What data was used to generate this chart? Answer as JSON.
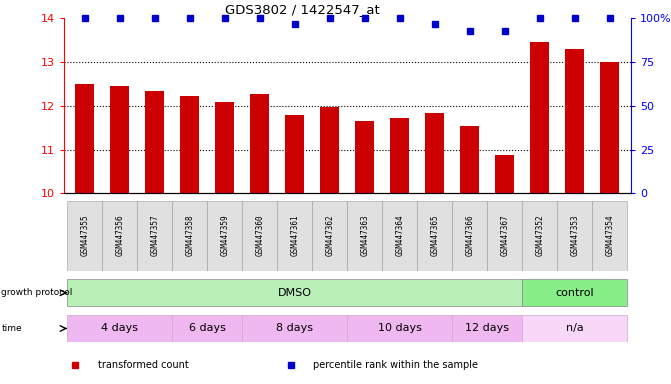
{
  "title": "GDS3802 / 1422547_at",
  "samples": [
    "GSM447355",
    "GSM447356",
    "GSM447357",
    "GSM447358",
    "GSM447359",
    "GSM447360",
    "GSM447361",
    "GSM447362",
    "GSM447363",
    "GSM447364",
    "GSM447365",
    "GSM447366",
    "GSM447367",
    "GSM447352",
    "GSM447353",
    "GSM447354"
  ],
  "bar_values": [
    12.5,
    12.45,
    12.35,
    12.22,
    12.1,
    12.27,
    11.8,
    11.97,
    11.65,
    11.72,
    11.85,
    11.55,
    10.88,
    13.47,
    13.3,
    13.0
  ],
  "percentile_values": [
    100,
    100,
    100,
    100,
    100,
    100,
    97,
    100,
    100,
    100,
    97,
    93,
    93,
    100,
    100,
    100
  ],
  "bar_color": "#cc0000",
  "dot_color": "#0000cc",
  "ylim_left": [
    10,
    14
  ],
  "ylim_right": [
    0,
    100
  ],
  "yticks_left": [
    10,
    11,
    12,
    13,
    14
  ],
  "yticks_right": [
    0,
    25,
    50,
    75,
    100
  ],
  "growth_protocol_groups": [
    {
      "label": "DMSO",
      "start": 0,
      "end": 13,
      "color": "#b8f0b8"
    },
    {
      "label": "control",
      "start": 13,
      "end": 16,
      "color": "#88ee88"
    }
  ],
  "time_groups": [
    {
      "label": "4 days",
      "start": 0,
      "end": 3,
      "color": "#f0b8f0"
    },
    {
      "label": "6 days",
      "start": 3,
      "end": 5,
      "color": "#f0b8f0"
    },
    {
      "label": "8 days",
      "start": 5,
      "end": 8,
      "color": "#f0b8f0"
    },
    {
      "label": "10 days",
      "start": 8,
      "end": 11,
      "color": "#f0b8f0"
    },
    {
      "label": "12 days",
      "start": 11,
      "end": 13,
      "color": "#f0b8f0"
    },
    {
      "label": "n/a",
      "start": 13,
      "end": 16,
      "color": "#f8d8f8"
    }
  ],
  "legend_items": [
    {
      "label": "transformed count",
      "color": "#cc0000"
    },
    {
      "label": "percentile rank within the sample",
      "color": "#0000cc"
    }
  ],
  "bg_color": "#ffffff"
}
